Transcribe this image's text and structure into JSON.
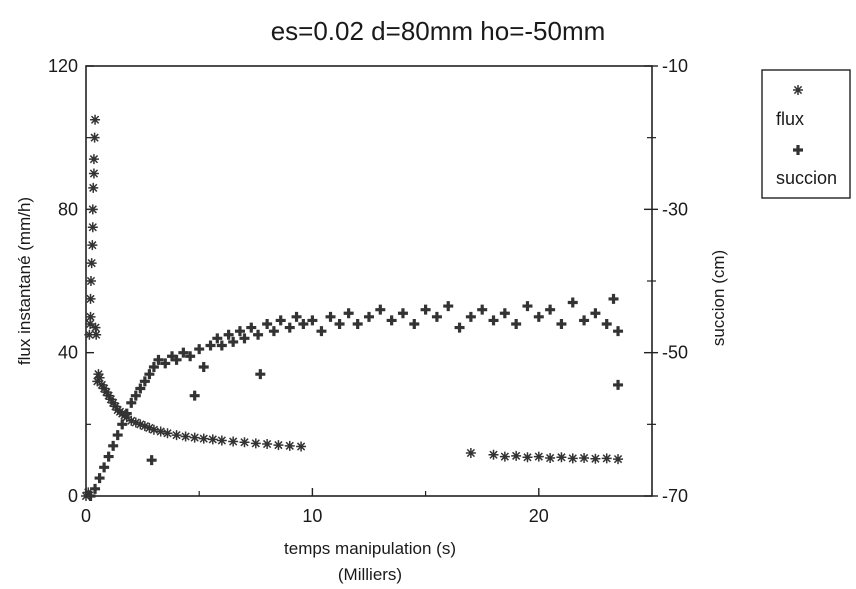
{
  "chart_data": {
    "type": "scatter",
    "title": "es=0.02 d=80mm ho=-50mm",
    "xlabel": "temps manipulation (s)",
    "xlabel_sub": "(Milliers)",
    "ylabel_left": "flux instantané (mm/h)",
    "ylabel_right": "succion (cm)",
    "xlim": [
      0,
      25
    ],
    "ylim_left": [
      0,
      120
    ],
    "ylim_right": [
      -70,
      -10
    ],
    "xticks": [
      "0",
      "10",
      "20"
    ],
    "yticks_left": [
      "0",
      "40",
      "80",
      "120"
    ],
    "yticks_right": [
      "-10",
      "-30",
      "-50",
      "-70"
    ],
    "legend_position": "right, outside plot",
    "grid": false,
    "series": [
      {
        "name": "flux",
        "axis": "left",
        "marker": "asterisk",
        "color": "#333333",
        "points": [
          [
            0.0,
            0
          ],
          [
            0.1,
            1
          ],
          [
            0.15,
            45
          ],
          [
            0.18,
            48
          ],
          [
            0.2,
            50
          ],
          [
            0.2,
            55
          ],
          [
            0.22,
            60
          ],
          [
            0.25,
            65
          ],
          [
            0.28,
            70
          ],
          [
            0.3,
            75
          ],
          [
            0.3,
            80
          ],
          [
            0.32,
            86
          ],
          [
            0.35,
            90
          ],
          [
            0.35,
            94
          ],
          [
            0.38,
            100
          ],
          [
            0.4,
            105
          ],
          [
            0.42,
            47
          ],
          [
            0.45,
            45
          ],
          [
            0.5,
            32
          ],
          [
            0.55,
            34
          ],
          [
            0.6,
            33
          ],
          [
            0.7,
            31
          ],
          [
            0.8,
            30
          ],
          [
            0.9,
            29
          ],
          [
            1.0,
            28
          ],
          [
            1.1,
            27
          ],
          [
            1.2,
            26
          ],
          [
            1.3,
            25
          ],
          [
            1.4,
            24
          ],
          [
            1.5,
            23.5
          ],
          [
            1.6,
            23
          ],
          [
            1.7,
            22.5
          ],
          [
            1.8,
            22
          ],
          [
            2.0,
            21
          ],
          [
            2.2,
            20.5
          ],
          [
            2.4,
            20
          ],
          [
            2.6,
            19.5
          ],
          [
            2.8,
            19
          ],
          [
            3.0,
            18.5
          ],
          [
            3.3,
            18
          ],
          [
            3.6,
            17.5
          ],
          [
            4.0,
            17
          ],
          [
            4.4,
            16.6
          ],
          [
            4.8,
            16.3
          ],
          [
            5.2,
            16
          ],
          [
            5.6,
            15.8
          ],
          [
            6.0,
            15.5
          ],
          [
            6.5,
            15.2
          ],
          [
            7.0,
            15
          ],
          [
            7.5,
            14.7
          ],
          [
            8.0,
            14.5
          ],
          [
            8.5,
            14.2
          ],
          [
            9.0,
            14
          ],
          [
            9.5,
            13.8
          ],
          [
            17.0,
            12
          ],
          [
            18.0,
            11.5
          ],
          [
            18.5,
            11
          ],
          [
            19.0,
            11.2
          ],
          [
            19.5,
            10.8
          ],
          [
            20.0,
            11
          ],
          [
            20.5,
            10.6
          ],
          [
            21.0,
            10.8
          ],
          [
            21.5,
            10.5
          ],
          [
            22.0,
            10.6
          ],
          [
            22.5,
            10.4
          ],
          [
            23.0,
            10.5
          ],
          [
            23.5,
            10.3
          ]
        ]
      },
      {
        "name": "succion",
        "axis": "right",
        "marker": "plus",
        "color": "#333333",
        "points": [
          [
            0.2,
            -70
          ],
          [
            0.4,
            -69
          ],
          [
            0.6,
            -67.5
          ],
          [
            0.8,
            -66
          ],
          [
            1.0,
            -64.5
          ],
          [
            1.2,
            -63
          ],
          [
            1.4,
            -61.5
          ],
          [
            1.6,
            -60
          ],
          [
            1.8,
            -58.5
          ],
          [
            2.0,
            -57
          ],
          [
            2.2,
            -56
          ],
          [
            2.4,
            -55
          ],
          [
            2.6,
            -54
          ],
          [
            2.8,
            -53
          ],
          [
            3.0,
            -52
          ],
          [
            2.9,
            -65
          ],
          [
            3.2,
            -51
          ],
          [
            3.5,
            -51.5
          ],
          [
            3.8,
            -50.5
          ],
          [
            4.0,
            -51
          ],
          [
            4.3,
            -50
          ],
          [
            4.6,
            -50.5
          ],
          [
            5.0,
            -49.5
          ],
          [
            5.2,
            -52
          ],
          [
            4.8,
            -56
          ],
          [
            5.5,
            -49
          ],
          [
            5.8,
            -48
          ],
          [
            6.0,
            -49
          ],
          [
            6.3,
            -47.5
          ],
          [
            6.5,
            -48.5
          ],
          [
            6.8,
            -47
          ],
          [
            7.0,
            -48
          ],
          [
            7.3,
            -46.5
          ],
          [
            7.6,
            -47.5
          ],
          [
            8.0,
            -46
          ],
          [
            7.7,
            -53
          ],
          [
            8.3,
            -47
          ],
          [
            8.6,
            -45.5
          ],
          [
            9.0,
            -46.5
          ],
          [
            9.3,
            -45
          ],
          [
            9.6,
            -46
          ],
          [
            10.0,
            -45.5
          ],
          [
            10.4,
            -47
          ],
          [
            10.8,
            -45
          ],
          [
            11.2,
            -46
          ],
          [
            11.6,
            -44.5
          ],
          [
            12.0,
            -46
          ],
          [
            12.5,
            -45
          ],
          [
            13.0,
            -44
          ],
          [
            13.5,
            -45.5
          ],
          [
            14.0,
            -44.5
          ],
          [
            14.5,
            -46
          ],
          [
            15.0,
            -44
          ],
          [
            15.5,
            -45
          ],
          [
            16.0,
            -43.5
          ],
          [
            16.5,
            -46.5
          ],
          [
            17.0,
            -45
          ],
          [
            17.5,
            -44
          ],
          [
            18.0,
            -45.5
          ],
          [
            18.5,
            -44.5
          ],
          [
            19.0,
            -46
          ],
          [
            19.5,
            -43.5
          ],
          [
            20.0,
            -45
          ],
          [
            20.5,
            -44
          ],
          [
            21.0,
            -46
          ],
          [
            21.5,
            -43
          ],
          [
            22.0,
            -45.5
          ],
          [
            22.5,
            -44.5
          ],
          [
            23.0,
            -46
          ],
          [
            23.3,
            -42.5
          ],
          [
            23.5,
            -54.5
          ],
          [
            23.5,
            -47
          ]
        ]
      }
    ]
  }
}
